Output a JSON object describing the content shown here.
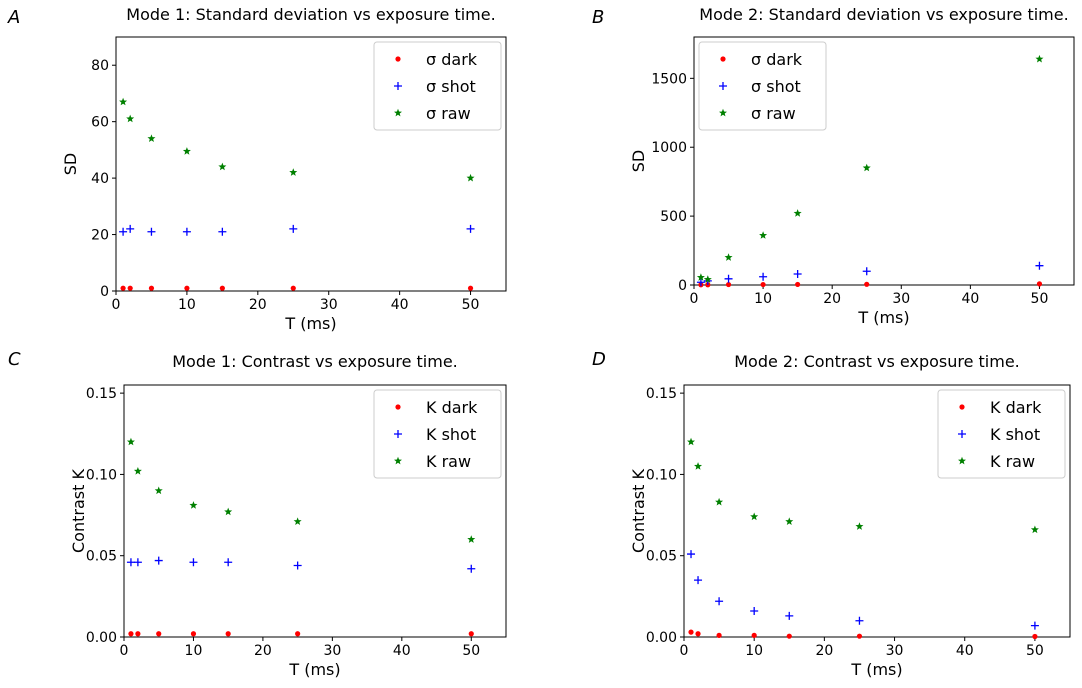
{
  "panels": [
    {
      "letter": "A",
      "chart_data": {
        "type": "scatter",
        "title": "Mode 1: Standard deviation vs exposure time.",
        "xlabel": "T (ms)",
        "ylabel": "SD",
        "xlim": [
          0,
          55
        ],
        "ylim": [
          0,
          90
        ],
        "xticks": [
          0,
          10,
          20,
          30,
          40,
          50
        ],
        "yticks": [
          0,
          20,
          40,
          60,
          80
        ],
        "ytick_labels": [
          "0",
          "20",
          "40",
          "60",
          "80"
        ],
        "legend_position": "top-right",
        "series": [
          {
            "name": "σ dark",
            "marker": "dot",
            "color": "#ff0000",
            "x": [
              1,
              2,
              5,
              10,
              15,
              25,
              50
            ],
            "y": [
              1,
              1,
              1,
              1,
              1,
              1,
              1
            ]
          },
          {
            "name": "σ shot",
            "marker": "plus",
            "color": "#0000ff",
            "x": [
              1,
              2,
              5,
              10,
              15,
              25,
              50
            ],
            "y": [
              21,
              22,
              21,
              21,
              21,
              22,
              22
            ]
          },
          {
            "name": "σ raw",
            "marker": "star",
            "color": "#008000",
            "x": [
              1,
              2,
              5,
              10,
              15,
              25,
              50
            ],
            "y": [
              67,
              61,
              54,
              49.5,
              44,
              42,
              40
            ]
          }
        ]
      }
    },
    {
      "letter": "B",
      "chart_data": {
        "type": "scatter",
        "title": "Mode 2: Standard deviation vs exposure time.",
        "xlabel": "T (ms)",
        "ylabel": "SD",
        "xlim": [
          0,
          55
        ],
        "ylim": [
          0,
          1800
        ],
        "xticks": [
          0,
          10,
          20,
          30,
          40,
          50
        ],
        "yticks": [
          0,
          500,
          1000,
          1500
        ],
        "ytick_labels": [
          "0",
          "500",
          "1000",
          "1500"
        ],
        "legend_position": "top-left",
        "series": [
          {
            "name": "σ dark",
            "marker": "dot",
            "color": "#ff0000",
            "x": [
              1,
              2,
              5,
              10,
              15,
              25,
              50
            ],
            "y": [
              2,
              2,
              3,
              3,
              4,
              5,
              8
            ]
          },
          {
            "name": "σ shot",
            "marker": "plus",
            "color": "#0000ff",
            "x": [
              1,
              2,
              5,
              10,
              15,
              25,
              50
            ],
            "y": [
              20,
              30,
              45,
              60,
              80,
              100,
              140
            ]
          },
          {
            "name": "σ raw",
            "marker": "star",
            "color": "#008000",
            "x": [
              1,
              2,
              5,
              10,
              15,
              25,
              50
            ],
            "y": [
              55,
              40,
              200,
              360,
              520,
              850,
              1640
            ]
          }
        ]
      }
    },
    {
      "letter": "C",
      "chart_data": {
        "type": "scatter",
        "title": "Mode 1: Contrast vs exposure time.",
        "xlabel": "T (ms)",
        "ylabel": "Contrast K",
        "xlim": [
          0,
          55
        ],
        "ylim": [
          0,
          0.155
        ],
        "xticks": [
          0,
          10,
          20,
          30,
          40,
          50
        ],
        "yticks": [
          0,
          0.05,
          0.1,
          0.15
        ],
        "ytick_labels": [
          "0.00",
          "0.05",
          "0.10",
          "0.15"
        ],
        "legend_position": "top-right",
        "series": [
          {
            "name": "K dark",
            "marker": "dot",
            "color": "#ff0000",
            "x": [
              1,
              2,
              5,
              10,
              15,
              25,
              50
            ],
            "y": [
              0.002,
              0.002,
              0.002,
              0.002,
              0.002,
              0.002,
              0.002
            ]
          },
          {
            "name": "K shot",
            "marker": "plus",
            "color": "#0000ff",
            "x": [
              1,
              2,
              5,
              10,
              15,
              25,
              50
            ],
            "y": [
              0.046,
              0.046,
              0.047,
              0.046,
              0.046,
              0.044,
              0.042
            ]
          },
          {
            "name": "K raw",
            "marker": "star",
            "color": "#008000",
            "x": [
              1,
              2,
              5,
              10,
              15,
              25,
              50
            ],
            "y": [
              0.12,
              0.102,
              0.09,
              0.081,
              0.077,
              0.071,
              0.06
            ]
          }
        ]
      }
    },
    {
      "letter": "D",
      "chart_data": {
        "type": "scatter",
        "title": "Mode 2: Contrast vs exposure time.",
        "xlabel": "T (ms)",
        "ylabel": "Contrast K",
        "xlim": [
          0,
          55
        ],
        "ylim": [
          0,
          0.155
        ],
        "xticks": [
          0,
          10,
          20,
          30,
          40,
          50
        ],
        "yticks": [
          0,
          0.05,
          0.1,
          0.15
        ],
        "ytick_labels": [
          "0.00",
          "0.05",
          "0.10",
          "0.15"
        ],
        "legend_position": "top-right",
        "series": [
          {
            "name": "K dark",
            "marker": "dot",
            "color": "#ff0000",
            "x": [
              1,
              2,
              5,
              10,
              15,
              25,
              50
            ],
            "y": [
              0.003,
              0.002,
              0.001,
              0.001,
              0.0005,
              0.0005,
              0.0003
            ]
          },
          {
            "name": "K shot",
            "marker": "plus",
            "color": "#0000ff",
            "x": [
              1,
              2,
              5,
              10,
              15,
              25,
              50
            ],
            "y": [
              0.051,
              0.035,
              0.022,
              0.016,
              0.013,
              0.01,
              0.007
            ]
          },
          {
            "name": "K raw",
            "marker": "star",
            "color": "#008000",
            "x": [
              1,
              2,
              5,
              10,
              15,
              25,
              50
            ],
            "y": [
              0.12,
              0.105,
              0.083,
              0.074,
              0.071,
              0.068,
              0.066
            ]
          }
        ]
      }
    }
  ]
}
